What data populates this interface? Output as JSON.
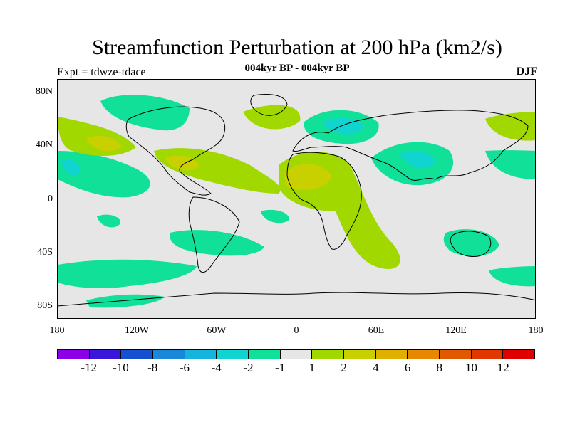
{
  "title": "Streamfunction Perturbation at 200 hPa (km2/s)",
  "subtitle": "004kyr BP - 004kyr BP",
  "left_label": "Expt = tdwze-tdace",
  "right_label": "DJF",
  "map": {
    "projection": "cylindrical equidistant",
    "lon_range": [
      -180,
      180
    ],
    "lat_range": [
      -90,
      90
    ],
    "background_color": "#e6e6e6",
    "coastline_color": "#000000"
  },
  "axes": {
    "y_ticks": [
      "80N",
      "40N",
      "0",
      "40S",
      "80S"
    ],
    "x_ticks": [
      "180",
      "120W",
      "60W",
      "0",
      "60E",
      "120E",
      "180"
    ]
  },
  "colorbar": {
    "colors": [
      "#8c00e8",
      "#3a16d8",
      "#1450d0",
      "#1a88d8",
      "#14b4dc",
      "#10d4d0",
      "#10e098",
      "#e6e6e6",
      "#a0d800",
      "#c8d000",
      "#e0b000",
      "#e88800",
      "#e05800",
      "#e03800",
      "#e00000"
    ],
    "labels": [
      "-12",
      "-10",
      "-8",
      "-6",
      "-4",
      "-2",
      "-1",
      "1",
      "2",
      "4",
      "6",
      "8",
      "10",
      "12"
    ]
  }
}
